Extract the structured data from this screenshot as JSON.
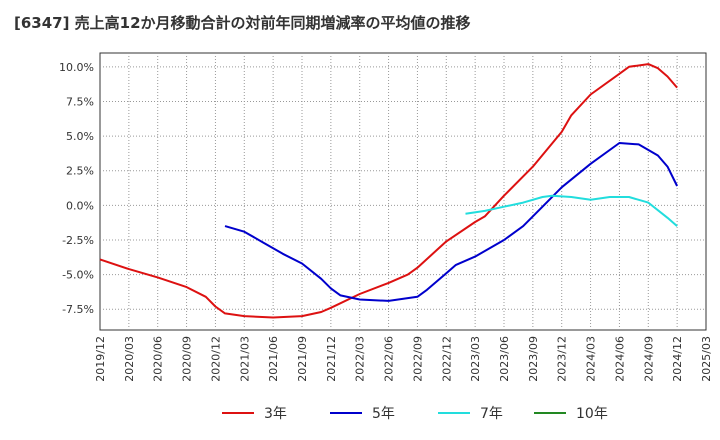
{
  "chart_data": {
    "type": "line",
    "title": "[6347]  売上高12か月移動合計の対前年同期増減率の平均値の推移",
    "xlabel": "",
    "ylabel": "",
    "x_ticks": [
      "2019/12",
      "2020/03",
      "2020/06",
      "2020/09",
      "2020/12",
      "2021/03",
      "2021/06",
      "2021/09",
      "2021/12",
      "2022/03",
      "2022/06",
      "2022/09",
      "2022/12",
      "2023/03",
      "2023/06",
      "2023/09",
      "2023/12",
      "2024/03",
      "2024/06",
      "2024/09",
      "2024/12",
      "2025/03"
    ],
    "xlim": [
      "2019/12",
      "2025/03"
    ],
    "ylim": [
      -9.0,
      11.0
    ],
    "y_ticks": [
      {
        "value": 10.0,
        "label": "10.0%"
      },
      {
        "value": 7.5,
        "label": "7.5%"
      },
      {
        "value": 5.0,
        "label": "5.0%"
      },
      {
        "value": 2.5,
        "label": "2.5%"
      },
      {
        "value": 0.0,
        "label": "0.0%"
      },
      {
        "value": -2.5,
        "label": "-2.5%"
      },
      {
        "value": -5.0,
        "label": "-5.0%"
      },
      {
        "value": -7.5,
        "label": "-7.5%"
      }
    ],
    "grid": true,
    "legend_position": "bottom",
    "series": [
      {
        "name": "3年",
        "color": "#dd1111",
        "points": [
          [
            "2019/12",
            -3.9
          ],
          [
            "2020/03",
            -4.6
          ],
          [
            "2020/06",
            -5.2
          ],
          [
            "2020/09",
            -5.9
          ],
          [
            "2020/11",
            -6.6
          ],
          [
            "2020/12",
            -7.3
          ],
          [
            "2021/01",
            -7.8
          ],
          [
            "2021/03",
            -8.0
          ],
          [
            "2021/06",
            -8.1
          ],
          [
            "2021/09",
            -8.0
          ],
          [
            "2021/11",
            -7.7
          ],
          [
            "2021/12",
            -7.4
          ],
          [
            "2022/03",
            -6.4
          ],
          [
            "2022/06",
            -5.6
          ],
          [
            "2022/08",
            -5.0
          ],
          [
            "2022/09",
            -4.5
          ],
          [
            "2022/12",
            -2.6
          ],
          [
            "2023/03",
            -1.2
          ],
          [
            "2023/04",
            -0.8
          ],
          [
            "2023/06",
            0.7
          ],
          [
            "2023/09",
            2.8
          ],
          [
            "2023/12",
            5.3
          ],
          [
            "2024/01",
            6.5
          ],
          [
            "2024/03",
            8.0
          ],
          [
            "2024/06",
            9.5
          ],
          [
            "2024/07",
            10.0
          ],
          [
            "2024/09",
            10.2
          ],
          [
            "2024/10",
            9.9
          ],
          [
            "2024/11",
            9.3
          ],
          [
            "2024/12",
            8.5
          ]
        ]
      },
      {
        "name": "5年",
        "color": "#0000cc",
        "points": [
          [
            "2021/01",
            -1.5
          ],
          [
            "2021/03",
            -1.9
          ],
          [
            "2021/05",
            -2.7
          ],
          [
            "2021/07",
            -3.5
          ],
          [
            "2021/09",
            -4.2
          ],
          [
            "2021/11",
            -5.3
          ],
          [
            "2021/12",
            -6.0
          ],
          [
            "2022/01",
            -6.5
          ],
          [
            "2022/03",
            -6.8
          ],
          [
            "2022/06",
            -6.9
          ],
          [
            "2022/09",
            -6.6
          ],
          [
            "2022/10",
            -6.1
          ],
          [
            "2022/12",
            -4.9
          ],
          [
            "2023/01",
            -4.3
          ],
          [
            "2023/03",
            -3.7
          ],
          [
            "2023/06",
            -2.5
          ],
          [
            "2023/08",
            -1.5
          ],
          [
            "2023/10",
            -0.1
          ],
          [
            "2023/12",
            1.3
          ],
          [
            "2024/03",
            3.0
          ],
          [
            "2024/06",
            4.5
          ],
          [
            "2024/08",
            4.4
          ],
          [
            "2024/10",
            3.6
          ],
          [
            "2024/11",
            2.8
          ],
          [
            "2024/12",
            1.4
          ]
        ]
      },
      {
        "name": "7年",
        "color": "#22dddd",
        "points": [
          [
            "2023/02",
            -0.6
          ],
          [
            "2023/04",
            -0.4
          ],
          [
            "2023/06",
            -0.1
          ],
          [
            "2023/08",
            0.2
          ],
          [
            "2023/10",
            0.6
          ],
          [
            "2023/11",
            0.7
          ],
          [
            "2024/01",
            0.6
          ],
          [
            "2024/03",
            0.4
          ],
          [
            "2024/05",
            0.6
          ],
          [
            "2024/07",
            0.6
          ],
          [
            "2024/09",
            0.2
          ],
          [
            "2024/11",
            -0.9
          ],
          [
            "2024/12",
            -1.5
          ]
        ]
      },
      {
        "name": "10年",
        "color": "#228822",
        "points": []
      }
    ]
  }
}
